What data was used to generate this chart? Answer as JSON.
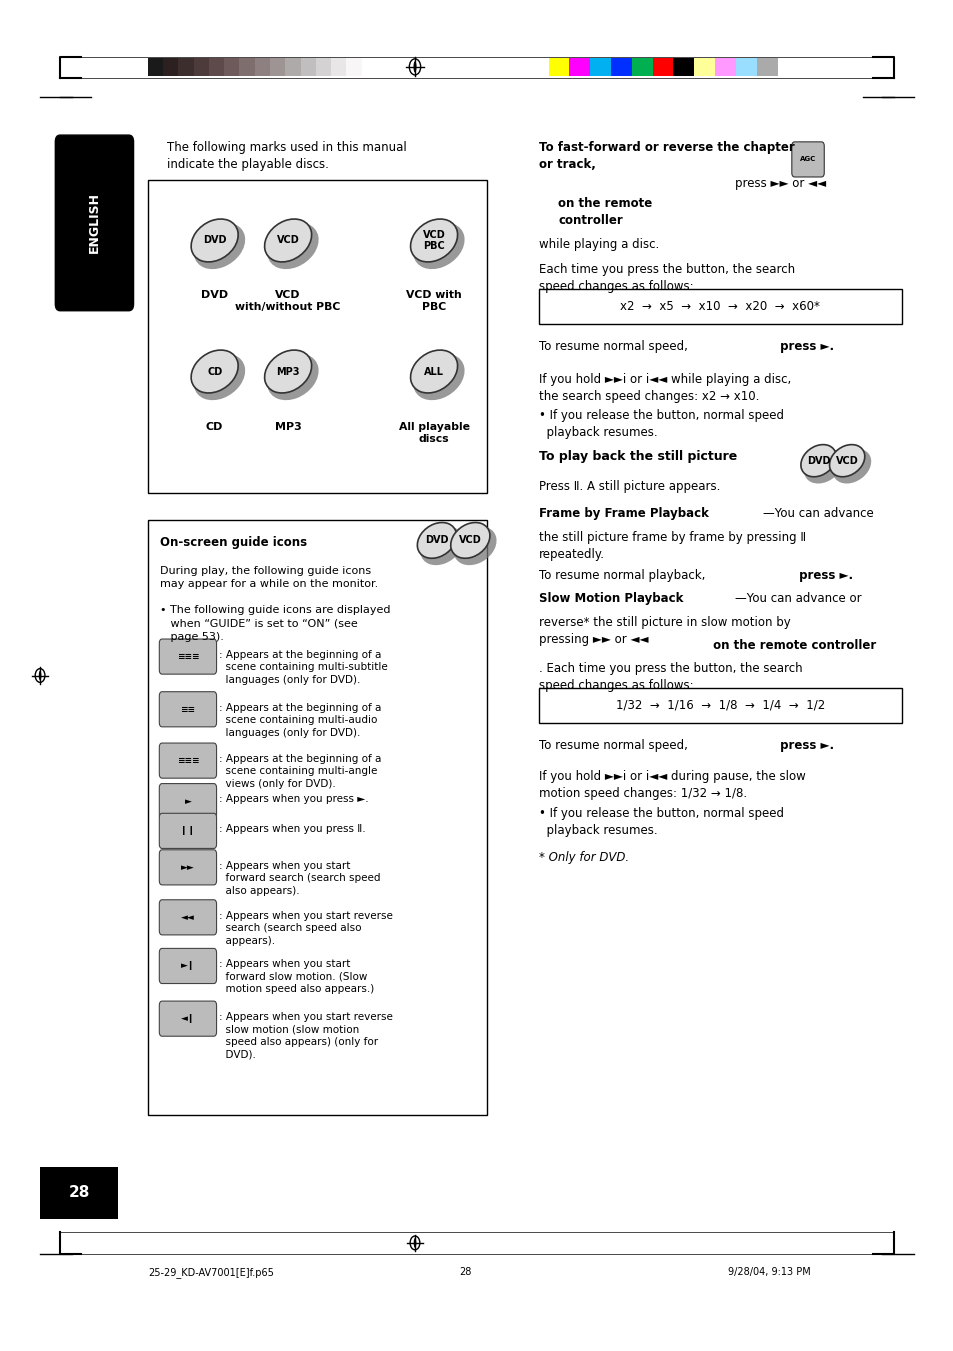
{
  "page_bg": "#ffffff",
  "page_width": 9.54,
  "page_height": 13.51,
  "header_bar_colors_left": [
    "#1a1a1a",
    "#2d2020",
    "#3d2e2e",
    "#4d3a3a",
    "#5e4a4a",
    "#6e5a5a",
    "#7e6e6e",
    "#8e8080",
    "#9e9494",
    "#aeaaaa",
    "#c0bebe",
    "#d4d2d2",
    "#e8e6e6",
    "#f8f6f6",
    "#ffffff"
  ],
  "header_bar_colors_right": [
    "#ffff00",
    "#ff00ff",
    "#00b0f0",
    "#002fff",
    "#00b050",
    "#ff0000",
    "#000000",
    "#ffff99",
    "#ff99ff",
    "#99ddff",
    "#aaaaaa"
  ],
  "page_number": "28",
  "footer_text_left": "25-29_KD-AV7001[E]f.p65",
  "footer_page": "28",
  "footer_date": "9/28/04, 9:13 PM"
}
